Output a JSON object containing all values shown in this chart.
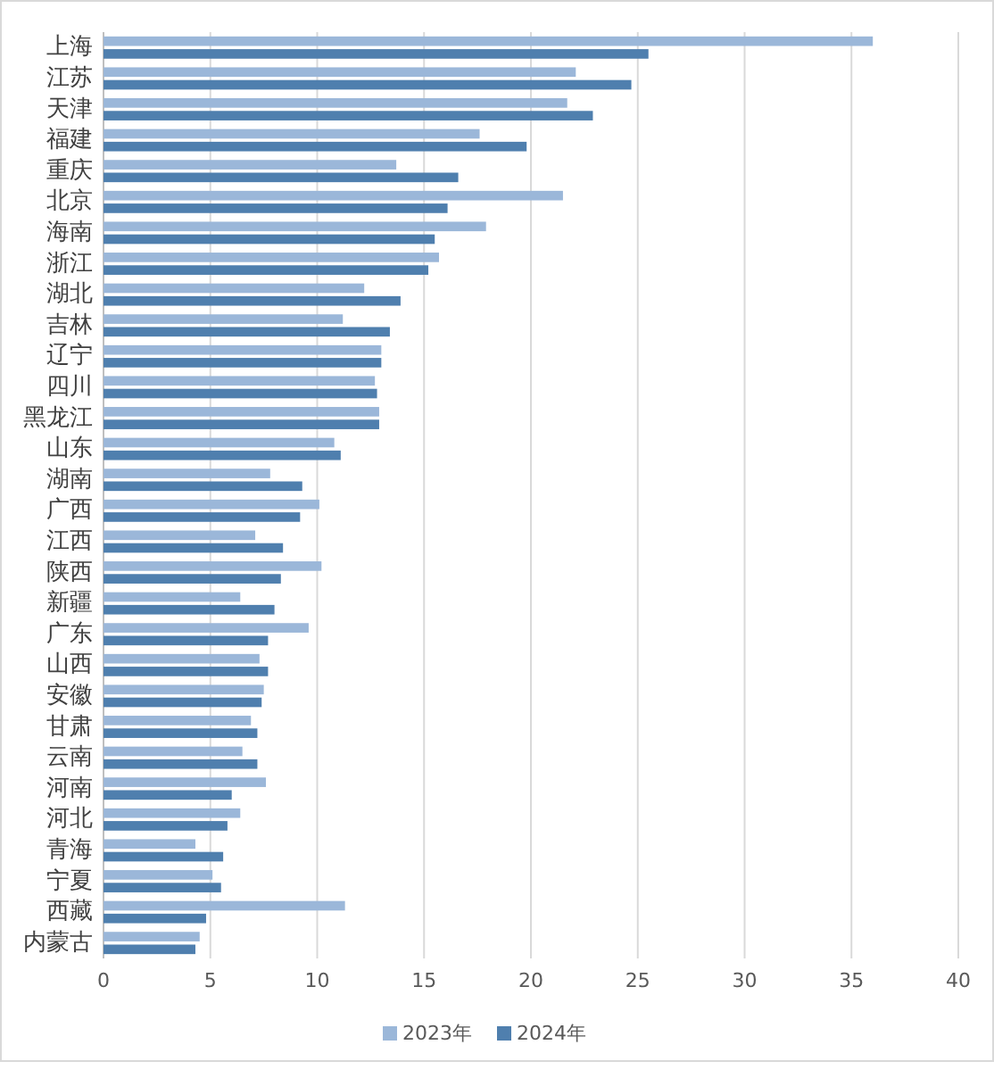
{
  "chart_data": {
    "type": "bar",
    "orientation": "horizontal",
    "categories": [
      "上海",
      "江苏",
      "天津",
      "福建",
      "重庆",
      "北京",
      "海南",
      "浙江",
      "湖北",
      "吉林",
      "辽宁",
      "四川",
      "黑龙江",
      "山东",
      "湖南",
      "广西",
      "江西",
      "陕西",
      "新疆",
      "广东",
      "山西",
      "安徽",
      "甘肃",
      "云南",
      "河南",
      "河北",
      "青海",
      "宁夏",
      "西藏",
      "内蒙古"
    ],
    "series": [
      {
        "name": "2023年",
        "color": "#9bb7d9",
        "values": [
          36.0,
          22.1,
          21.7,
          17.6,
          13.7,
          21.5,
          17.9,
          15.7,
          12.2,
          11.2,
          13.0,
          12.7,
          12.9,
          10.8,
          7.8,
          10.1,
          7.1,
          10.2,
          6.4,
          9.6,
          7.3,
          7.5,
          6.9,
          6.5,
          7.6,
          6.4,
          4.3,
          5.1,
          11.3,
          4.5
        ]
      },
      {
        "name": "2024年",
        "color": "#4f7fae",
        "values": [
          25.5,
          24.7,
          22.9,
          19.8,
          16.6,
          16.1,
          15.5,
          15.2,
          13.9,
          13.4,
          13.0,
          12.8,
          12.9,
          11.1,
          9.3,
          9.2,
          8.4,
          8.3,
          8.0,
          7.7,
          7.7,
          7.4,
          7.2,
          7.2,
          6.0,
          5.8,
          5.6,
          5.5,
          4.8,
          4.3
        ]
      }
    ],
    "xlim": [
      0,
      40
    ],
    "xticks": [
      0,
      5,
      10,
      15,
      20,
      25,
      30,
      35,
      40
    ],
    "grid": "x",
    "legend": "bottom"
  }
}
